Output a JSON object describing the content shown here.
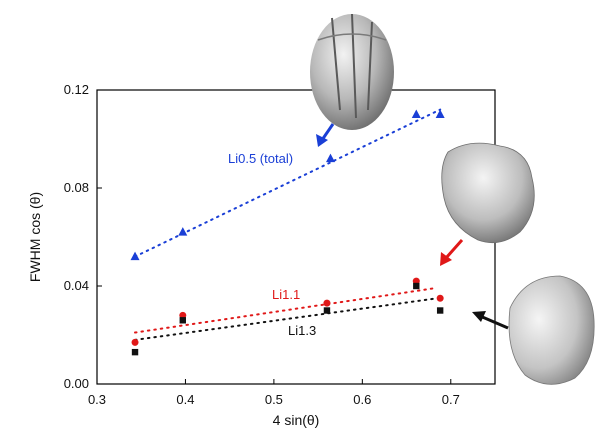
{
  "chart_data": {
    "type": "scatter",
    "xlabel": "4 sin(θ)",
    "ylabel": "FWHM cos (θ)",
    "xlim": [
      0.3,
      0.75
    ],
    "ylim": [
      0.0,
      0.12
    ],
    "x_ticks": [
      "0.3",
      "0.4",
      "0.5",
      "0.6",
      "0.7"
    ],
    "y_ticks": [
      "0.00",
      "0.04",
      "0.08",
      "0.12"
    ],
    "grid": false,
    "series": [
      {
        "name": "Li0.5 (total)",
        "color": "#1a3fd6",
        "marker": "triangle",
        "points": [
          [
            0.343,
            0.052
          ],
          [
            0.397,
            0.062
          ],
          [
            0.564,
            0.092
          ],
          [
            0.661,
            0.11
          ],
          [
            0.688,
            0.11
          ]
        ],
        "fit": [
          [
            0.343,
            0.052
          ],
          [
            0.688,
            0.112
          ]
        ]
      },
      {
        "name": "Li1.1",
        "color": "#e01818",
        "marker": "circle",
        "points": [
          [
            0.343,
            0.017
          ],
          [
            0.397,
            0.028
          ],
          [
            0.56,
            0.033
          ],
          [
            0.661,
            0.042
          ],
          [
            0.688,
            0.035
          ]
        ],
        "fit": [
          [
            0.343,
            0.021
          ],
          [
            0.68,
            0.039
          ]
        ]
      },
      {
        "name": "Li1.3",
        "color": "#111111",
        "marker": "square",
        "points": [
          [
            0.343,
            0.013
          ],
          [
            0.397,
            0.026
          ],
          [
            0.56,
            0.03
          ],
          [
            0.661,
            0.04
          ],
          [
            0.688,
            0.03
          ]
        ],
        "fit": [
          [
            0.343,
            0.018
          ],
          [
            0.685,
            0.035
          ]
        ]
      }
    ],
    "annotations": [
      {
        "text": "Li0.5 (total)",
        "color": "#1a3fd6"
      },
      {
        "text": "Li1.1",
        "color": "#e01818"
      },
      {
        "text": "Li1.3",
        "color": "#111111"
      }
    ]
  }
}
